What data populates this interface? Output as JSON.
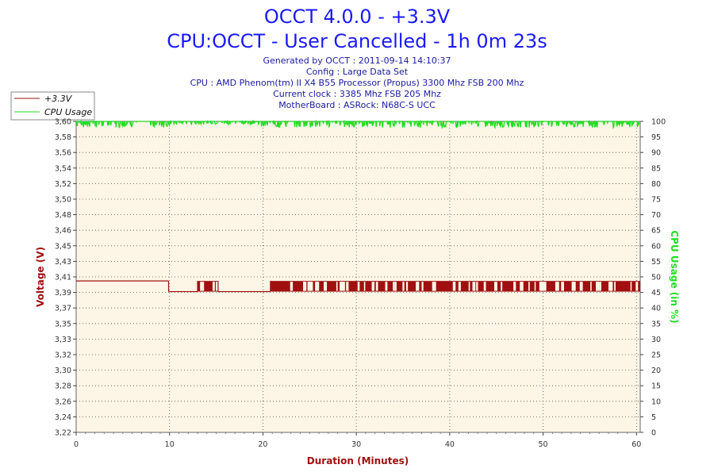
{
  "title_lines": [
    "OCCT 4.0.0 - +3.3V",
    "CPU:OCCT - User Cancelled - 1h 0m 23s"
  ],
  "info_lines": [
    "Generated by OCCT : 2011-09-14 14:10:37",
    "Config : Large Data Set",
    "CPU : AMD Phenom(tm) II X4 B55 Processor (Propus) 3300 Mhz FSB 200 Mhz",
    "Current clock : 3385 Mhz FSB 205 Mhz",
    "MotherBoard : ASRock: N68C-S UCC"
  ],
  "colors": {
    "voltage": "#a01010",
    "cpu": "#22dd22",
    "title": "#1a1aff",
    "plot_bg": "#fdf5e6"
  },
  "chart_data": {
    "type": "line",
    "xlabel": "Duration (Minutes)",
    "ylabel": "Voltage (V)",
    "y2label": "CPU Usage (in %)",
    "xlim": [
      0,
      60.4
    ],
    "ylim": [
      3.22,
      3.6
    ],
    "y2lim": [
      0,
      100
    ],
    "grid": true,
    "legend_position": "top-left",
    "x_ticks": [
      "0",
      "10",
      "20",
      "30",
      "40",
      "50",
      "60"
    ],
    "y_ticks": [
      "3,22",
      "3,24",
      "3,26",
      "3,28",
      "3,30",
      "3,32",
      "3,33",
      "3,35",
      "3,37",
      "3,39",
      "3,41",
      "3,43",
      "3,45",
      "3,46",
      "3,48",
      "3,50",
      "3,52",
      "3,54",
      "3,56",
      "3,58",
      "3,60"
    ],
    "y2_ticks": [
      "0",
      "5",
      "10",
      "15",
      "20",
      "25",
      "30",
      "35",
      "40",
      "45",
      "50",
      "55",
      "60",
      "65",
      "70",
      "75",
      "80",
      "85",
      "90",
      "95",
      "100"
    ],
    "series": [
      {
        "name": "+3.3V",
        "x": [
          0,
          9.9,
          9.9,
          13.0,
          13.0,
          15.2,
          15.2,
          20.8,
          20.8,
          60.4
        ],
        "y": [
          3.405,
          3.405,
          3.392,
          3.392,
          3.405,
          3.392,
          3.392,
          3.392,
          3.405,
          3.392
        ],
        "segments": [
          {
            "from": 0,
            "to": 9.9,
            "value": 3.405,
            "kind": "flat"
          },
          {
            "from": 9.9,
            "to": 13.0,
            "value": 3.392,
            "kind": "flat"
          },
          {
            "from": 13.0,
            "to": 15.2,
            "low": 3.392,
            "high": 3.405,
            "kind": "toggling"
          },
          {
            "from": 15.2,
            "to": 20.8,
            "value": 3.392,
            "kind": "flat"
          },
          {
            "from": 20.8,
            "to": 60.4,
            "low": 3.392,
            "high": 3.405,
            "kind": "toggling"
          }
        ]
      },
      {
        "name": "CPU Usage",
        "segments": [
          {
            "from": 0,
            "to": 10.2,
            "low": 98,
            "high": 100
          },
          {
            "from": 10.2,
            "to": 19.8,
            "low": 99,
            "high": 100
          },
          {
            "from": 19.8,
            "to": 60.4,
            "low": 98,
            "high": 100
          }
        ]
      }
    ]
  }
}
